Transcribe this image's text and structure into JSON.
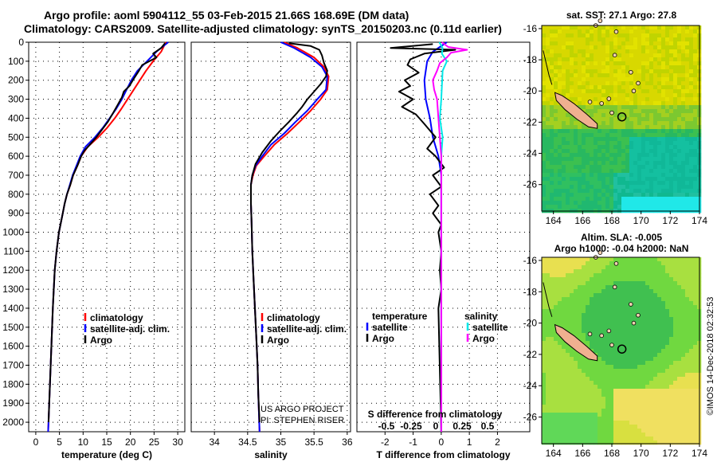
{
  "header": {
    "line1": "Argo profile: aoml 5904112_55 03-Feb-2015 21.66S 168.69E (DM data)",
    "line2": "Climatology: CARS2009. Satellite-adjusted climatology: synTS_20150203.nc (0.11d earlier)"
  },
  "credit": "©IMOS 14-Dec-2018 02:32:53",
  "colors": {
    "climatology": "#ff0000",
    "satellite": "#0000ff",
    "argo": "#000000",
    "sal_satellite": "#00e8e8",
    "sal_argo": "#ff00ff"
  },
  "chart_data": [
    {
      "type": "line",
      "id": "temperature",
      "xlabel": "temperature (deg C)",
      "xlim": [
        -1.5,
        31.5
      ],
      "xticks": [
        0,
        5,
        10,
        15,
        20,
        25,
        30
      ],
      "ylim": [
        0,
        2050
      ],
      "yticks": [
        0,
        100,
        200,
        300,
        400,
        500,
        600,
        700,
        800,
        900,
        1000,
        1100,
        1200,
        1300,
        1400,
        1500,
        1600,
        1700,
        1800,
        1900,
        2000
      ],
      "legend": [
        "climatology",
        "satellite-adj. clim.",
        "Argo"
      ],
      "series": [
        {
          "name": "climatology",
          "color": "#ff0000",
          "points": [
            [
              27.5,
              0
            ],
            [
              26.5,
              50
            ],
            [
              24.8,
              100
            ],
            [
              23.3,
              150
            ],
            [
              22,
              200
            ],
            [
              20.7,
              250
            ],
            [
              19.4,
              300
            ],
            [
              18.1,
              350
            ],
            [
              16.7,
              400
            ],
            [
              15.1,
              450
            ],
            [
              13.2,
              500
            ],
            [
              11,
              550
            ],
            [
              9.6,
              600
            ],
            [
              8.8,
              650
            ],
            [
              7.9,
              700
            ],
            [
              7.3,
              750
            ],
            [
              6.6,
              800
            ],
            [
              6.1,
              850
            ],
            [
              5.7,
              900
            ],
            [
              4.9,
              1000
            ],
            [
              4.4,
              1100
            ],
            [
              4,
              1200
            ],
            [
              3.6,
              1400
            ],
            [
              3.3,
              1600
            ],
            [
              3,
              1800
            ],
            [
              2.7,
              2000
            ],
            [
              2.6,
              2050
            ]
          ]
        },
        {
          "name": "satellite-adj. clim.",
          "color": "#0000ff",
          "points": [
            [
              28,
              0
            ],
            [
              25.5,
              50
            ],
            [
              23.5,
              100
            ],
            [
              21.5,
              150
            ],
            [
              20.2,
              200
            ],
            [
              19.2,
              250
            ],
            [
              18.2,
              300
            ],
            [
              17,
              350
            ],
            [
              15.6,
              400
            ],
            [
              14.2,
              450
            ],
            [
              12.5,
              500
            ],
            [
              10.5,
              550
            ],
            [
              9.4,
              600
            ],
            [
              8.6,
              650
            ],
            [
              7.8,
              700
            ],
            [
              7.2,
              750
            ],
            [
              6.6,
              800
            ],
            [
              6.1,
              850
            ],
            [
              5.7,
              900
            ],
            [
              4.9,
              1000
            ],
            [
              4.4,
              1100
            ],
            [
              4,
              1200
            ],
            [
              3.6,
              1400
            ],
            [
              3.3,
              1600
            ],
            [
              3,
              1800
            ],
            [
              2.7,
              2000
            ],
            [
              2.6,
              2050
            ]
          ]
        },
        {
          "name": "Argo",
          "color": "#000000",
          "points": [
            [
              27.3,
              5
            ],
            [
              26.5,
              30
            ],
            [
              24.8,
              60
            ],
            [
              25.5,
              80
            ],
            [
              22.5,
              120
            ],
            [
              21.8,
              150
            ],
            [
              20.5,
              200
            ],
            [
              19.8,
              230
            ],
            [
              18.6,
              260
            ],
            [
              18.2,
              290
            ],
            [
              17.3,
              330
            ],
            [
              16.4,
              370
            ],
            [
              15.2,
              420
            ],
            [
              14,
              460
            ],
            [
              12.8,
              500
            ],
            [
              11.4,
              540
            ],
            [
              10.3,
              570
            ],
            [
              9.6,
              600
            ],
            [
              8.8,
              650
            ],
            [
              7.9,
              700
            ],
            [
              7.3,
              750
            ],
            [
              6.6,
              800
            ],
            [
              6.1,
              850
            ],
            [
              5.7,
              900
            ],
            [
              4.9,
              1000
            ],
            [
              4.4,
              1100
            ],
            [
              4,
              1200
            ],
            [
              3.6,
              1400
            ],
            [
              3.3,
              1600
            ],
            [
              3,
              1800
            ],
            [
              2.7,
              2000
            ]
          ]
        }
      ]
    },
    {
      "type": "line",
      "id": "salinity",
      "xlabel": "salinity",
      "xlim": [
        33.65,
        36.05
      ],
      "xticks": [
        34,
        34.5,
        35,
        35.5,
        36
      ],
      "ylim": [
        0,
        2050
      ],
      "legend": [
        "climatology",
        "satellite-adj. clim.",
        "Argo"
      ],
      "annotation": [
        "US ARGO PROJECT",
        "PI: STEPHEN RISER"
      ],
      "series": [
        {
          "name": "climatology",
          "color": "#ff0000",
          "points": [
            [
              35.05,
              0
            ],
            [
              35.25,
              30
            ],
            [
              35.5,
              80
            ],
            [
              35.65,
              130
            ],
            [
              35.72,
              180
            ],
            [
              35.7,
              250
            ],
            [
              35.6,
              300
            ],
            [
              35.45,
              360
            ],
            [
              35.28,
              420
            ],
            [
              35.1,
              480
            ],
            [
              34.9,
              540
            ],
            [
              34.75,
              600
            ],
            [
              34.63,
              650
            ],
            [
              34.58,
              700
            ],
            [
              34.55,
              750
            ],
            [
              34.55,
              850
            ],
            [
              34.56,
              950
            ],
            [
              34.57,
              1100
            ],
            [
              34.59,
              1250
            ],
            [
              34.61,
              1400
            ],
            [
              34.63,
              1550
            ],
            [
              34.65,
              1700
            ],
            [
              34.66,
              1850
            ],
            [
              34.68,
              2050
            ]
          ]
        },
        {
          "name": "satellite-adj. clim.",
          "color": "#0000ff",
          "points": [
            [
              35,
              0
            ],
            [
              35.2,
              30
            ],
            [
              35.45,
              80
            ],
            [
              35.62,
              130
            ],
            [
              35.7,
              180
            ],
            [
              35.68,
              250
            ],
            [
              35.55,
              300
            ],
            [
              35.4,
              360
            ],
            [
              35.22,
              420
            ],
            [
              35.05,
              480
            ],
            [
              34.85,
              540
            ],
            [
              34.72,
              600
            ],
            [
              34.62,
              650
            ],
            [
              34.57,
              700
            ],
            [
              34.55,
              750
            ],
            [
              34.55,
              850
            ],
            [
              34.56,
              950
            ],
            [
              34.57,
              1100
            ],
            [
              34.59,
              1250
            ],
            [
              34.61,
              1400
            ],
            [
              34.63,
              1550
            ],
            [
              34.65,
              1700
            ],
            [
              34.66,
              1850
            ],
            [
              34.68,
              2050
            ]
          ]
        },
        {
          "name": "Argo",
          "color": "#000000",
          "points": [
            [
              35.12,
              5
            ],
            [
              35.45,
              20
            ],
            [
              35.58,
              40
            ],
            [
              35.62,
              70
            ],
            [
              35.65,
              110
            ],
            [
              35.7,
              150
            ],
            [
              35.68,
              180
            ],
            [
              35.6,
              220
            ],
            [
              35.5,
              260
            ],
            [
              35.4,
              300
            ],
            [
              35.32,
              340
            ],
            [
              35.25,
              370
            ],
            [
              35.12,
              420
            ],
            [
              34.98,
              470
            ],
            [
              34.85,
              520
            ],
            [
              34.72,
              580
            ],
            [
              34.62,
              640
            ],
            [
              34.57,
              700
            ],
            [
              34.55,
              750
            ],
            [
              34.55,
              850
            ],
            [
              34.56,
              950
            ],
            [
              34.57,
              1100
            ],
            [
              34.59,
              1250
            ],
            [
              34.61,
              1400
            ],
            [
              34.63,
              1550
            ],
            [
              34.65,
              1700
            ],
            [
              34.66,
              1850
            ],
            [
              34.68,
              2000
            ]
          ]
        }
      ]
    },
    {
      "type": "line",
      "id": "differences",
      "xlabel": "T difference from climatology",
      "xlim": [
        -3,
        3.15
      ],
      "xticks": [
        -2,
        -1,
        0,
        1,
        2
      ],
      "x2label": "S difference from climatology",
      "x2ticks": [
        "-0.5",
        "-0.25",
        "0",
        "0.25",
        "0.5"
      ],
      "ylim": [
        0,
        2050
      ],
      "legend_left": {
        "title": "temperature",
        "entries": [
          "satellite",
          "Argo"
        ]
      },
      "legend_right": {
        "title": "salinity",
        "entries": [
          "satellite",
          "Argo"
        ]
      },
      "series": [
        {
          "name": "temperature satellite",
          "color": "#0000ff",
          "points": [
            [
              0.2,
              0
            ],
            [
              -0.3,
              50
            ],
            [
              -0.5,
              100
            ],
            [
              -0.6,
              200
            ],
            [
              -0.55,
              300
            ],
            [
              -0.4,
              400
            ],
            [
              -0.3,
              500
            ],
            [
              -0.2,
              550
            ],
            [
              -0.1,
              600
            ],
            [
              0,
              700
            ],
            [
              0,
              2050
            ]
          ]
        },
        {
          "name": "temperature Argo",
          "color": "#000000",
          "points": [
            [
              -0.3,
              10
            ],
            [
              -1.8,
              30
            ],
            [
              0.5,
              40
            ],
            [
              -0.6,
              60
            ],
            [
              -1.1,
              90
            ],
            [
              -1.2,
              120
            ],
            [
              -0.8,
              160
            ],
            [
              -1.3,
              200
            ],
            [
              -1.1,
              230
            ],
            [
              -1.5,
              260
            ],
            [
              -1.0,
              300
            ],
            [
              -1.4,
              340
            ],
            [
              -0.9,
              380
            ],
            [
              -0.6,
              430
            ],
            [
              -0.2,
              500
            ],
            [
              -0.5,
              560
            ],
            [
              -0.2,
              600
            ],
            [
              0.1,
              660
            ],
            [
              -0.3,
              700
            ],
            [
              0.0,
              760
            ],
            [
              -0.4,
              800
            ],
            [
              -0.1,
              860
            ],
            [
              -0.3,
              900
            ],
            [
              0.0,
              960
            ],
            [
              -0.1,
              1000
            ],
            [
              0.0,
              1100
            ],
            [
              -0.05,
              1200
            ],
            [
              0.0,
              1300
            ],
            [
              -0.1,
              1400
            ],
            [
              0.0,
              2050
            ]
          ]
        },
        {
          "name": "salinity satellite",
          "color": "#00e8e8",
          "points": [
            [
              -0.07,
              0
            ],
            [
              0.05,
              30
            ],
            [
              0.02,
              60
            ],
            [
              0.2,
              100
            ],
            [
              0.05,
              150
            ],
            [
              0,
              300
            ],
            [
              -0.05,
              400
            ],
            [
              0.05,
              500
            ],
            [
              0,
              600
            ],
            [
              0,
              2050
            ]
          ]
        },
        {
          "name": "salinity Argo",
          "color": "#ff00ff",
          "points": [
            [
              0.02,
              0
            ],
            [
              0.25,
              25
            ],
            [
              0.92,
              40
            ],
            [
              0.35,
              55
            ],
            [
              0.2,
              80
            ],
            [
              -0.05,
              110
            ],
            [
              -0.15,
              150
            ],
            [
              -0.3,
              200
            ],
            [
              -0.25,
              250
            ],
            [
              -0.15,
              300
            ],
            [
              -0.1,
              400
            ],
            [
              -0.05,
              500
            ],
            [
              0,
              600
            ],
            [
              0,
              2050
            ]
          ]
        }
      ]
    },
    {
      "type": "heatmap",
      "id": "sst_map",
      "title": "sat. SST: 27.1 Argo: 27.8",
      "xlim": [
        163.2,
        174
      ],
      "ylim": [
        -27.7,
        -15.8
      ],
      "xticks": [
        164,
        166,
        168,
        170,
        172,
        174
      ],
      "yticks": [
        -16,
        -18,
        -20,
        -22,
        -24,
        -26
      ],
      "marker": [
        168.69,
        -21.66
      ]
    },
    {
      "type": "heatmap",
      "id": "sla_map",
      "title_lines": [
        "Altim. SLA: -0.005",
        "Argo h1000: -0.04 h2000: NaN"
      ],
      "xlim": [
        163.2,
        174
      ],
      "ylim": [
        -27.7,
        -15.8
      ],
      "xticks": [
        164,
        166,
        168,
        170,
        172,
        174
      ],
      "yticks": [
        -16,
        -18,
        -20,
        -22,
        -24,
        -26
      ],
      "marker": [
        168.69,
        -21.66
      ]
    }
  ]
}
